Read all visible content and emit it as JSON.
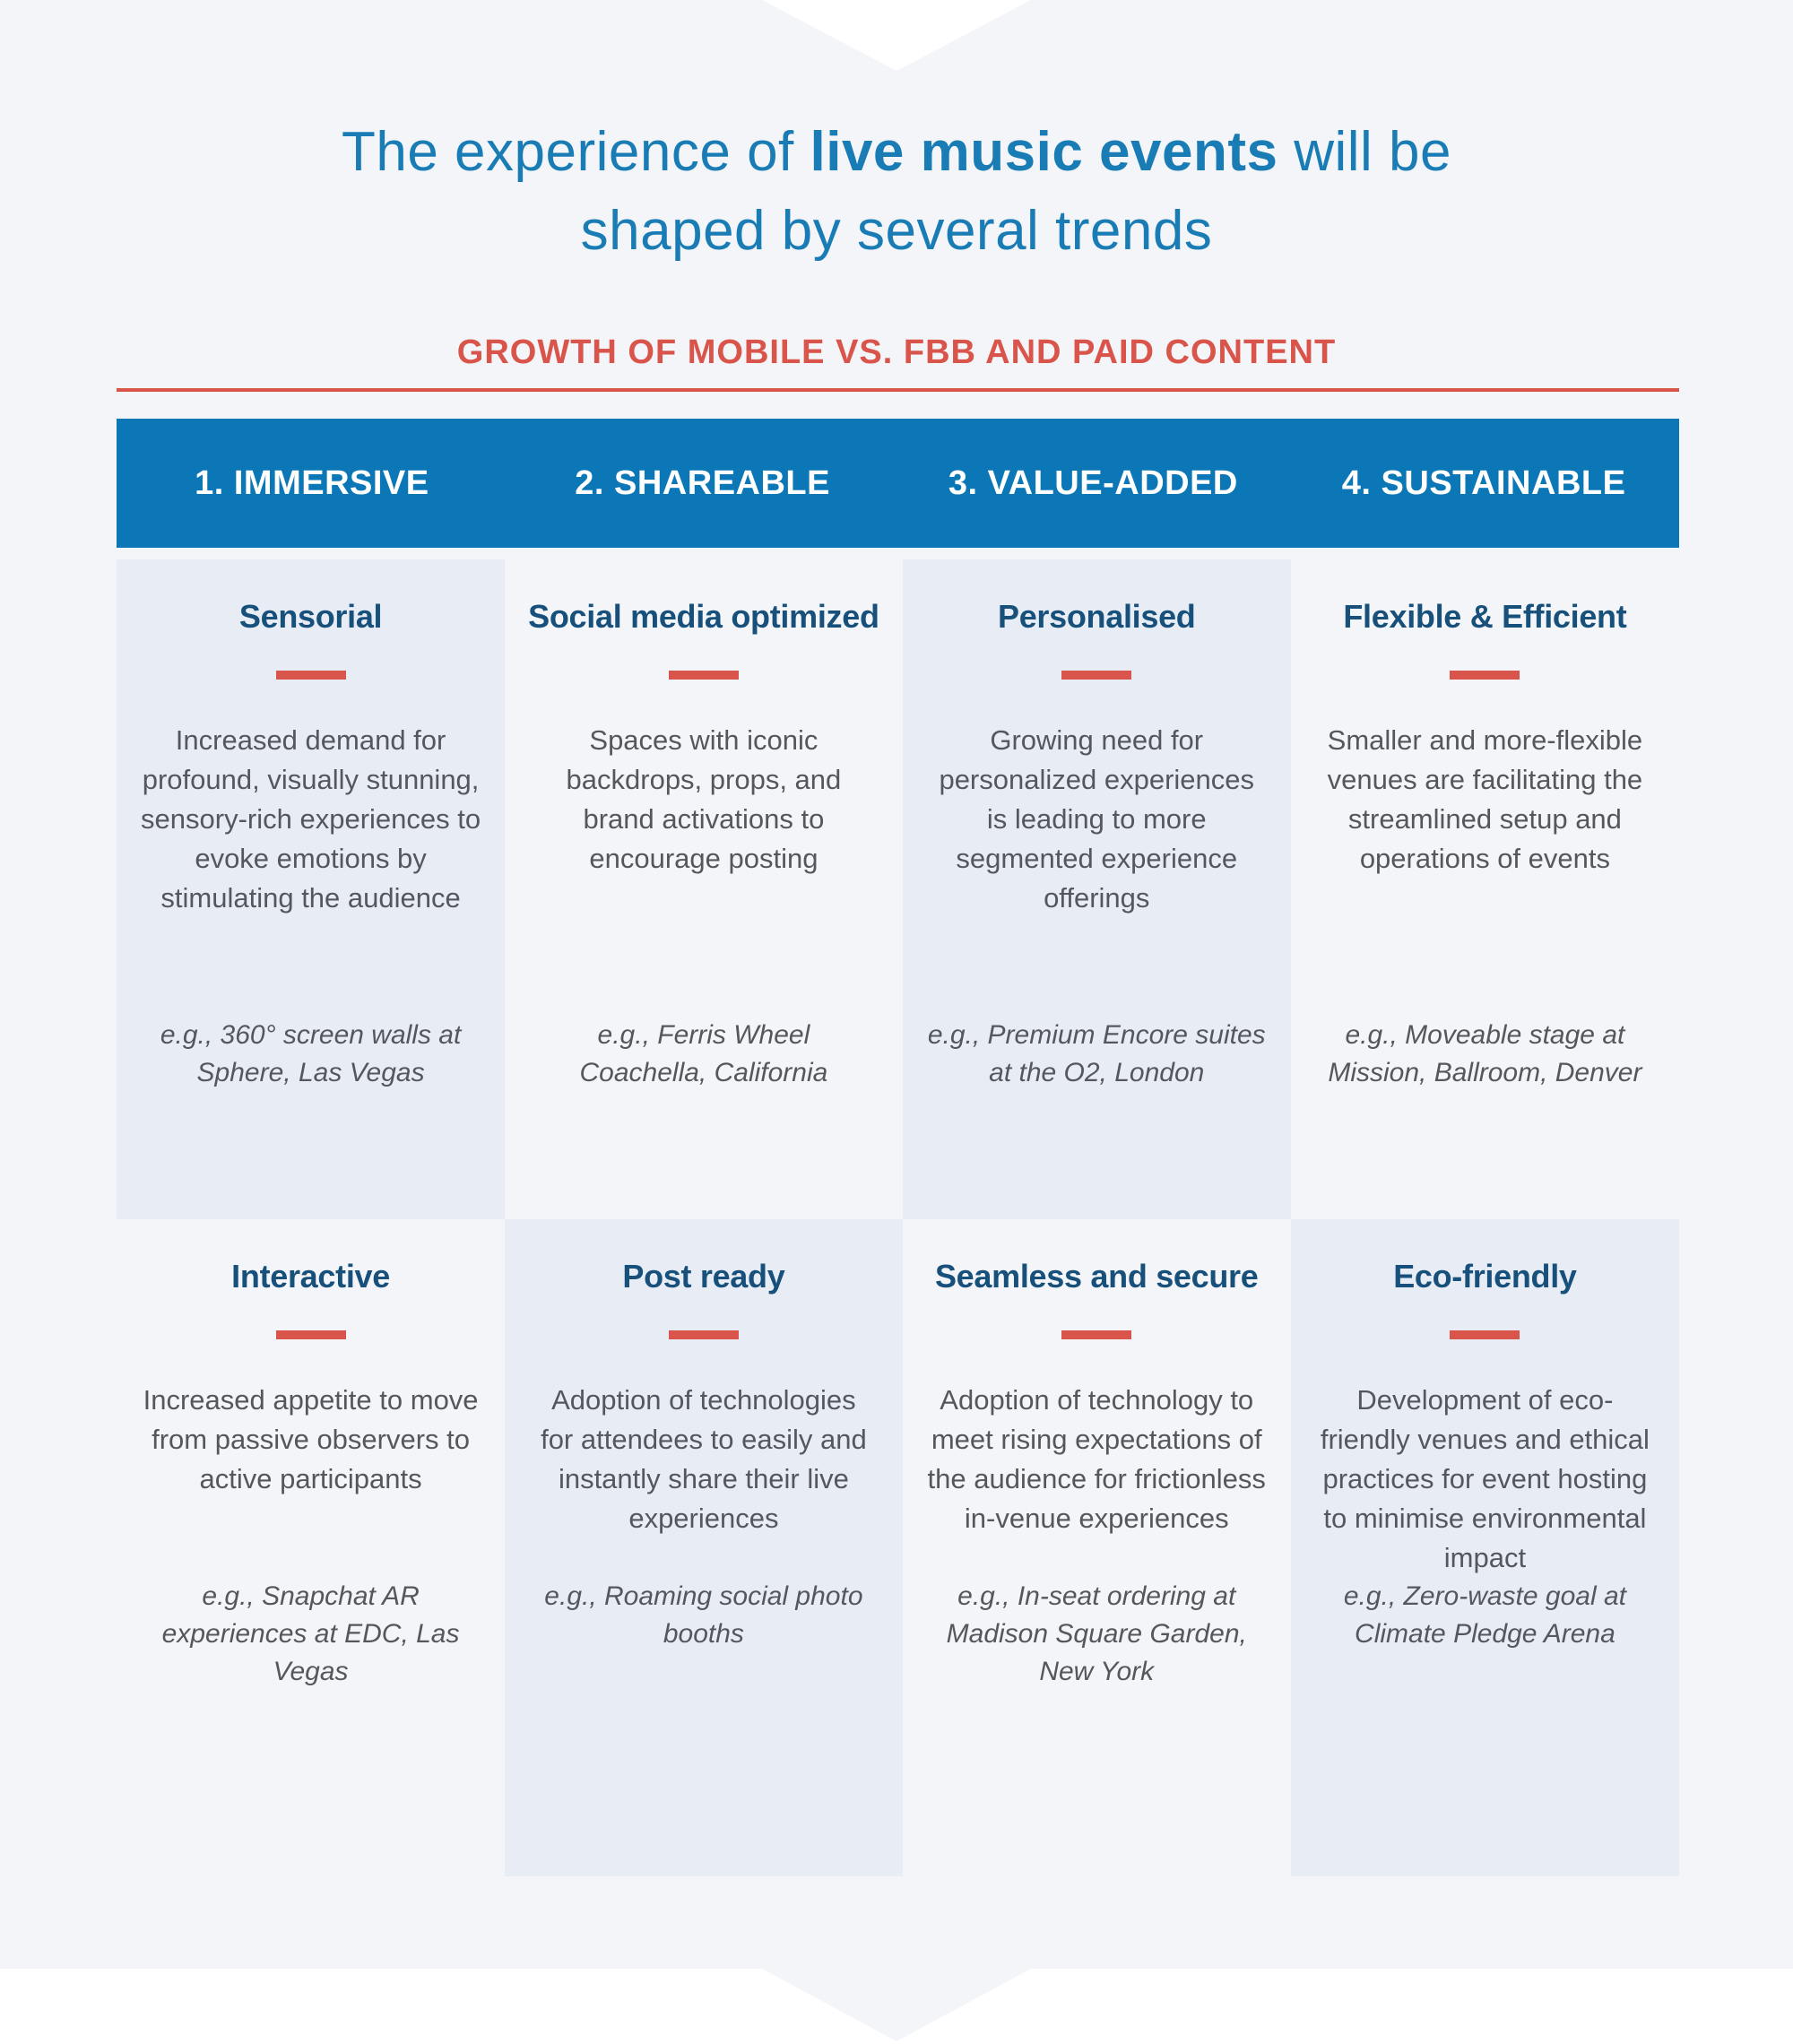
{
  "colors": {
    "page_background": "#f3f5f8",
    "accent_red": "#d9544a",
    "header_bar_blue": "#0b77b7",
    "card_tint": "#e8edf5",
    "title_blue": "#1a7cb5",
    "card_title_navy": "#17507b",
    "body_text_gray": "#54575d"
  },
  "title": {
    "part1": "The experience of ",
    "highlight": "live music events",
    "part2": " will be",
    "line2": "shaped by several trends"
  },
  "subtitle": "GROWTH OF MOBILE VS. FBB AND PAID CONTENT",
  "columns": [
    {
      "header": "1. IMMERSIVE",
      "cards": [
        {
          "title": "Sensorial",
          "body": "Increased demand for profound, visually stunning, sensory-rich experiences to evoke emotions by stimulating the audience",
          "example": "e.g., 360° screen walls at Sphere, Las Vegas"
        },
        {
          "title": "Interactive",
          "body": "Increased appetite to move from passive observers to active participants",
          "example": "e.g., Snapchat AR experiences at EDC, Las Vegas"
        }
      ]
    },
    {
      "header": "2. SHAREABLE",
      "cards": [
        {
          "title": "Social media optimized",
          "body": "Spaces with iconic backdrops, props, and brand activations to encourage posting",
          "example": "e.g., Ferris Wheel Coachella, California"
        },
        {
          "title": "Post ready",
          "body": "Adoption of technologies for attendees to easily and instantly share their live experiences",
          "example": "e.g., Roaming social photo booths"
        }
      ]
    },
    {
      "header": "3. VALUE-ADDED",
      "cards": [
        {
          "title": "Personalised",
          "body": "Growing need for personalized experiences is leading to more segmented experience offerings",
          "example": "e.g., Premium Encore suites at the O2, London"
        },
        {
          "title": "Seamless and secure",
          "body": "Adoption of technology to meet rising expectations of the audience for frictionless in-venue experiences",
          "example": "e.g., In-seat ordering at Madison Square Garden, New York"
        }
      ]
    },
    {
      "header": "4. SUSTAINABLE",
      "cards": [
        {
          "title": "Flexible & Efficient",
          "body": "Smaller and more-flexible venues are facilitating the streamlined setup and operations of events",
          "example": "e.g., Moveable stage at Mission, Ballroom, Denver"
        },
        {
          "title": "Eco-friendly",
          "body": "Development of eco-friendly venues and ethical practices for event hosting to minimise environmental impact",
          "example": "e.g., Zero-waste goal at Climate Pledge Arena"
        }
      ]
    }
  ]
}
